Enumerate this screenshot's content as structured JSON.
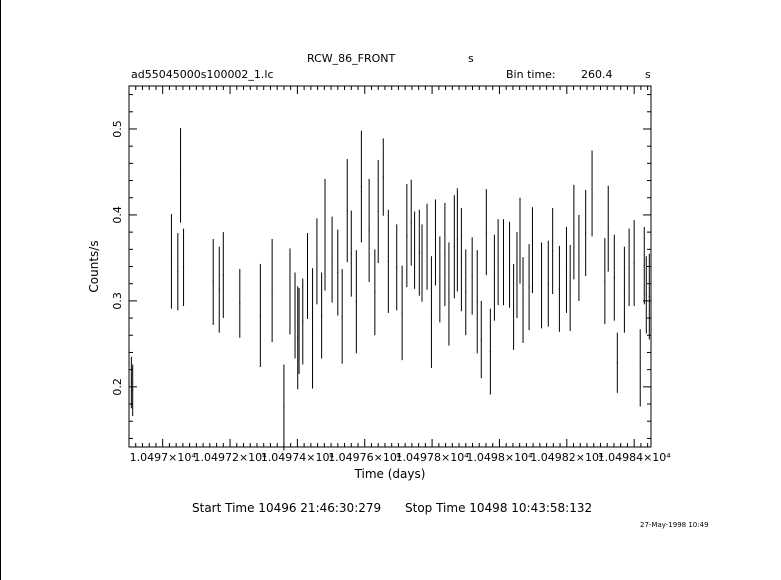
{
  "header": {
    "title": "RCW_86_FRONT",
    "title_suffix": "s",
    "filename": "ad55045000s100002_1.lc",
    "bin_label": "Bin time:",
    "bin_value": "260.4",
    "bin_unit": "s"
  },
  "footer": {
    "start": "Start Time 10496 21:46:30:279",
    "stop": "Stop Time 10498 10:43:58:132",
    "date": "27-May-1998 10:49"
  },
  "chart_data": {
    "type": "scatter",
    "title": "RCW_86_FRONT",
    "xlabel": "Time (days)",
    "ylabel": "Counts/s",
    "xlim": [
      10496.9,
      10498.45
    ],
    "ylim": [
      0.13,
      0.55
    ],
    "x_tick_values": [
      10497.0,
      10497.2,
      10497.4,
      10497.6,
      10497.8,
      10498.0,
      10498.2,
      10498.4
    ],
    "x_tick_labels": [
      "1.0497×10⁴",
      "1.04972×10⁴",
      "1.04974×10⁴",
      "1.04976×10⁴",
      "1.04978×10⁴",
      "1.0498×10⁴",
      "1.04982×10⁴",
      "1.04984×10⁴"
    ],
    "y_tick_values": [
      0.2,
      0.3,
      0.4,
      0.5
    ],
    "y_tick_labels": [
      "0.2",
      "0.3",
      "0.4",
      "0.5"
    ],
    "x": [
      10496.907,
      10496.911,
      10497.026,
      10497.045,
      10497.053,
      10497.062,
      10497.15,
      10497.168,
      10497.18,
      10497.229,
      10497.29,
      10497.325,
      10497.36,
      10497.378,
      10497.393,
      10497.401,
      10497.405,
      10497.416,
      10497.43,
      10497.445,
      10497.458,
      10497.472,
      10497.482,
      10497.503,
      10497.52,
      10497.533,
      10497.548,
      10497.56,
      10497.575,
      10497.59,
      10497.613,
      10497.63,
      10497.64,
      10497.655,
      10497.67,
      10497.695,
      10497.711,
      10497.725,
      10497.738,
      10497.748,
      10497.762,
      10497.77,
      10497.785,
      10497.798,
      10497.81,
      10497.823,
      10497.838,
      10497.85,
      10497.866,
      10497.875,
      10497.887,
      10497.9,
      10497.919,
      10497.934,
      10497.946,
      10497.961,
      10497.973,
      10497.985,
      10497.996,
      10498.012,
      10498.03,
      10498.042,
      10498.052,
      10498.061,
      10498.07,
      10498.088,
      10498.098,
      10498.125,
      10498.145,
      10498.158,
      10498.178,
      10498.199,
      10498.21,
      10498.221,
      10498.236,
      10498.256,
      10498.275,
      10498.313,
      10498.323,
      10498.341,
      10498.35,
      10498.371,
      10498.385,
      10498.4,
      10498.418,
      10498.43,
      10498.436,
      10498.445
    ],
    "y": [
      0.205,
      0.196,
      0.346,
      0.334,
      0.446,
      0.339,
      0.322,
      0.313,
      0.33,
      0.297,
      0.283,
      0.312,
      0.176,
      0.311,
      0.283,
      0.257,
      0.265,
      0.276,
      0.329,
      0.268,
      0.346,
      0.283,
      0.377,
      0.348,
      0.333,
      0.282,
      0.405,
      0.355,
      0.299,
      0.433,
      0.382,
      0.31,
      0.404,
      0.444,
      0.346,
      0.339,
      0.286,
      0.376,
      0.391,
      0.359,
      0.356,
      0.344,
      0.363,
      0.287,
      0.368,
      0.325,
      0.354,
      0.308,
      0.363,
      0.371,
      0.348,
      0.31,
      0.329,
      0.299,
      0.255,
      0.38,
      0.241,
      0.327,
      0.345,
      0.345,
      0.342,
      0.293,
      0.33,
      0.37,
      0.301,
      0.316,
      0.359,
      0.318,
      0.32,
      0.358,
      0.314,
      0.336,
      0.315,
      0.38,
      0.35,
      0.379,
      0.425,
      0.323,
      0.384,
      0.327,
      0.228,
      0.313,
      0.339,
      0.344,
      0.222,
      0.341,
      0.307,
      0.305
    ],
    "yerr": [
      0.03,
      0.03,
      0.055,
      0.045,
      0.055,
      0.045,
      0.05,
      0.05,
      0.05,
      0.04,
      0.06,
      0.06,
      0.05,
      0.05,
      0.05,
      0.06,
      0.05,
      0.05,
      0.05,
      0.07,
      0.05,
      0.05,
      0.065,
      0.05,
      0.05,
      0.055,
      0.06,
      0.05,
      0.06,
      0.065,
      0.06,
      0.05,
      0.06,
      0.045,
      0.06,
      0.05,
      0.055,
      0.06,
      0.05,
      0.045,
      0.05,
      0.045,
      0.05,
      0.065,
      0.05,
      0.05,
      0.06,
      0.06,
      0.06,
      0.06,
      0.06,
      0.05,
      0.045,
      0.06,
      0.045,
      0.05,
      0.05,
      0.05,
      0.05,
      0.05,
      0.05,
      0.05,
      0.05,
      0.05,
      0.05,
      0.05,
      0.05,
      0.05,
      0.05,
      0.05,
      0.05,
      0.05,
      0.05,
      0.055,
      0.05,
      0.05,
      0.05,
      0.05,
      0.05,
      0.05,
      0.035,
      0.05,
      0.045,
      0.05,
      0.045,
      0.045,
      0.045,
      0.05
    ],
    "xerr": 0.0015,
    "grid": false,
    "legend": "none"
  }
}
